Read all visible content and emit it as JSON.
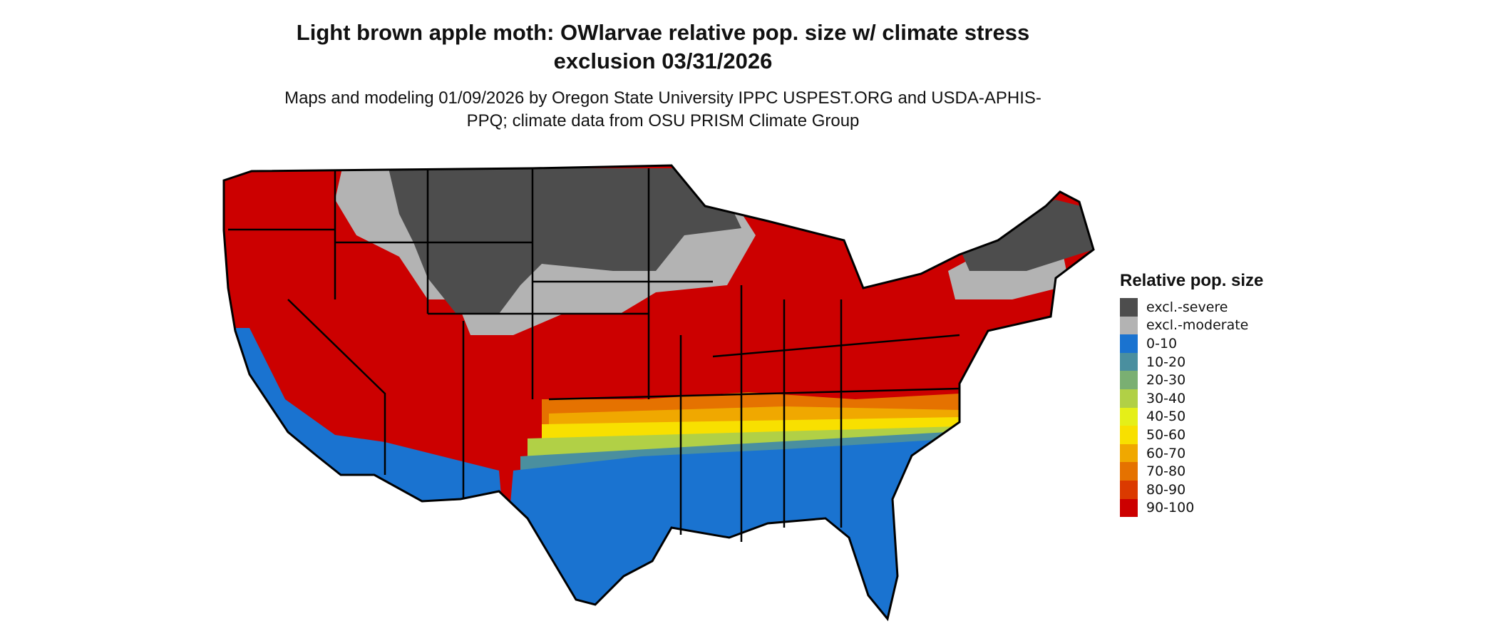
{
  "title": "Light brown apple moth: OWlarvae relative pop. size w/ climate stress exclusion 03/31/2026",
  "subtitle": "Maps and modeling 01/09/2026 by Oregon State University IPPC USPEST.ORG and USDA-APHIS-PPQ; climate data from OSU PRISM Climate Group",
  "legend": {
    "title": "Relative pop. size",
    "items": [
      {
        "label": "excl.-severe",
        "color": "#4d4d4d"
      },
      {
        "label": "excl.-moderate",
        "color": "#b3b3b3"
      },
      {
        "label": "0-10",
        "color": "#1a73d0"
      },
      {
        "label": "10-20",
        "color": "#4a8f9f"
      },
      {
        "label": "20-30",
        "color": "#7aaf72"
      },
      {
        "label": "30-40",
        "color": "#b1d046"
      },
      {
        "label": "40-50",
        "color": "#e5ef18"
      },
      {
        "label": "50-60",
        "color": "#f8e000"
      },
      {
        "label": "60-70",
        "color": "#f0a800"
      },
      {
        "label": "70-80",
        "color": "#e57200"
      },
      {
        "label": "80-90",
        "color": "#db3a00"
      },
      {
        "label": "90-100",
        "color": "#cc0000"
      }
    ]
  }
}
